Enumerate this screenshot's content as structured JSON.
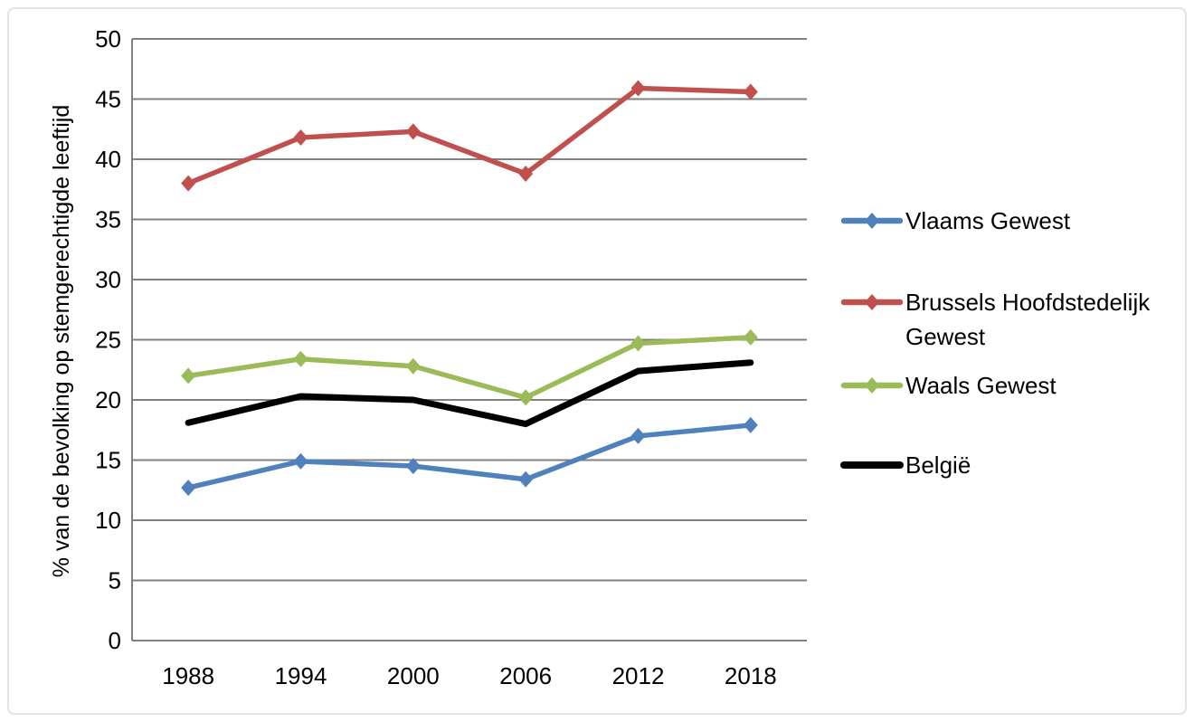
{
  "chart_data": {
    "type": "line",
    "title": "",
    "xlabel": "",
    "ylabel": "% van de bevolking op stemgerechtigde leeftijd",
    "ylim": [
      0,
      50
    ],
    "y_tick_step": 5,
    "grid": true,
    "legend_position": "right",
    "categories": [
      "1988",
      "1994",
      "2000",
      "2006",
      "2012",
      "2018"
    ],
    "series": [
      {
        "name": "Vlaams Gewest",
        "color": "#4F81BD",
        "marker": "diamond",
        "line_width": 5.5,
        "values": [
          12.7,
          14.9,
          14.5,
          13.4,
          17.0,
          17.9
        ]
      },
      {
        "name": "Brussels Hoofdstedelijk Gewest",
        "color": "#C0504D",
        "marker": "diamond",
        "line_width": 5.5,
        "values": [
          38.0,
          41.8,
          42.3,
          38.8,
          45.9,
          45.6
        ]
      },
      {
        "name": "Waals Gewest",
        "color": "#9BBB59",
        "marker": "diamond",
        "line_width": 5.5,
        "values": [
          22.0,
          23.4,
          22.8,
          20.2,
          24.7,
          25.2
        ]
      },
      {
        "name": "België",
        "color": "#000000",
        "marker": "none",
        "line_width": 7,
        "values": [
          18.1,
          20.3,
          20.0,
          18.0,
          22.4,
          23.1
        ]
      }
    ],
    "legend": [
      {
        "label": "Vlaams Gewest",
        "lines": [
          "Vlaams Gewest"
        ]
      },
      {
        "label": "Brussels Hoofdstedelijk Gewest",
        "lines": [
          "Brussels Hoofdstedelijk",
          "Gewest"
        ]
      },
      {
        "label": "Waals Gewest",
        "lines": [
          "Waals Gewest"
        ]
      },
      {
        "label": "België",
        "lines": [
          "België"
        ]
      }
    ],
    "colors": {
      "gridline": "#808080",
      "axis": "#808080",
      "text": "#000000",
      "background": "#FFFFFF",
      "frame_border": "#E2E2E2"
    }
  }
}
